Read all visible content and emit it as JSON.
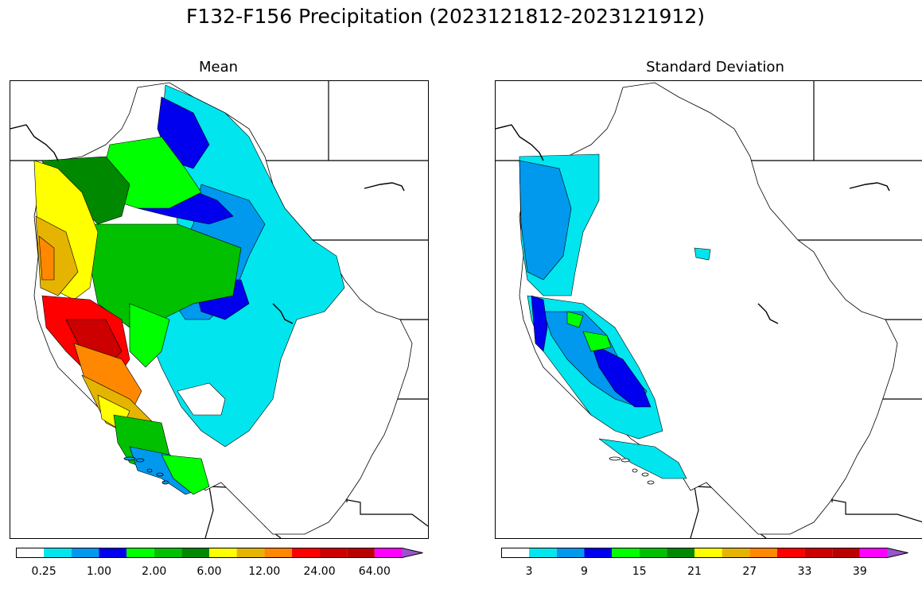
{
  "title": "F132-F156 Precipitation (2023121812-2023121912)",
  "panels": [
    {
      "id": "mean",
      "title": "Mean",
      "colorbar": {
        "colors": [
          "#ffffff",
          "#00e5ee",
          "#0099ee",
          "#0000ee",
          "#00ff00",
          "#00c000",
          "#008800",
          "#ffff00",
          "#e5b400",
          "#ff8800",
          "#ff0000",
          "#cc0000",
          "#bb0000",
          "#ff00ff",
          "#9955cc"
        ],
        "labels": [
          "0.25",
          "1.00",
          "2.00",
          "6.00",
          "12.00",
          "24.00",
          "64.00"
        ],
        "extend": "max"
      }
    },
    {
      "id": "std",
      "title": "Standard Deviation",
      "colorbar": {
        "colors": [
          "#ffffff",
          "#00e5ee",
          "#0099ee",
          "#0000ee",
          "#00ff00",
          "#00c000",
          "#008800",
          "#ffff00",
          "#e5b400",
          "#ff8800",
          "#ff0000",
          "#cc0000",
          "#bb0000",
          "#ff00ff",
          "#9955cc"
        ],
        "labels": [
          "3",
          "9",
          "15",
          "21",
          "27",
          "33",
          "39"
        ],
        "extend": "max"
      }
    }
  ]
}
